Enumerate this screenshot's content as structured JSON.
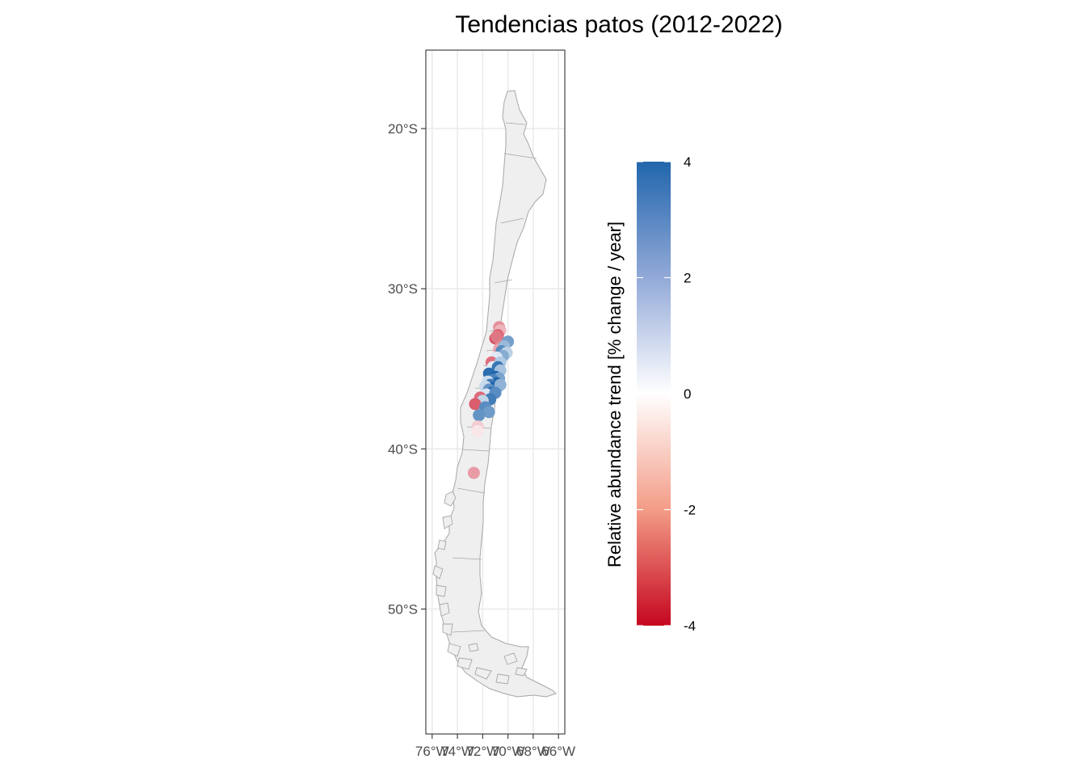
{
  "title": "Tendencias patos (2012-2022)",
  "x_axis": {
    "ticks": [
      {
        "value": -76,
        "label": "76°W"
      },
      {
        "value": -74,
        "label": "74°W"
      },
      {
        "value": -72,
        "label": "72°W"
      },
      {
        "value": -70,
        "label": "70°W"
      },
      {
        "value": -68,
        "label": "68°W"
      },
      {
        "value": -66,
        "label": "66°W"
      }
    ]
  },
  "y_axis": {
    "ticks": [
      {
        "value": -20,
        "label": "20°S"
      },
      {
        "value": -30,
        "label": "30°S"
      },
      {
        "value": -40,
        "label": "40°S"
      },
      {
        "value": -50,
        "label": "50°S"
      }
    ]
  },
  "legend": {
    "title": "Relative abundance trend [% change / year]",
    "ticks": [
      {
        "value": 4,
        "label": "4"
      },
      {
        "value": 2,
        "label": "2"
      },
      {
        "value": 0,
        "label": "0"
      },
      {
        "value": -2,
        "label": "-2"
      },
      {
        "value": -4,
        "label": "-4"
      }
    ],
    "colors": {
      "high": "#2166ac",
      "mid": "#ffffff",
      "low": "#c5061f"
    }
  },
  "chart_data": {
    "type": "scatter",
    "title": "Tendencias patos (2012-2022)",
    "xlabel": "",
    "ylabel": "",
    "xlim": [
      -76.5,
      -65.5
    ],
    "ylim": [
      -57.8,
      -15.1
    ],
    "grid": true,
    "legend_position": "right",
    "color_scale": {
      "min": -4,
      "max": 4,
      "label": "Relative abundance trend [% change / year]"
    },
    "points": [
      {
        "lon": -70.7,
        "lat": -32.4,
        "trend": -1.8
      },
      {
        "lon": -70.6,
        "lat": -32.6,
        "trend": -1.2
      },
      {
        "lon": -70.8,
        "lat": -32.9,
        "trend": -2.5
      },
      {
        "lon": -71.0,
        "lat": -33.1,
        "trend": -2.8
      },
      {
        "lon": -70.9,
        "lat": -33.0,
        "trend": -2.2
      },
      {
        "lon": -70.6,
        "lat": -33.6,
        "trend": -2.0
      },
      {
        "lon": -70.7,
        "lat": -33.8,
        "trend": -1.5
      },
      {
        "lon": -70.0,
        "lat": -33.3,
        "trend": 2.5
      },
      {
        "lon": -70.3,
        "lat": -33.6,
        "trend": 1.8
      },
      {
        "lon": -70.5,
        "lat": -33.9,
        "trend": 3.0
      },
      {
        "lon": -70.1,
        "lat": -34.0,
        "trend": 1.2
      },
      {
        "lon": -70.4,
        "lat": -34.2,
        "trend": 2.2
      },
      {
        "lon": -70.9,
        "lat": -34.3,
        "trend": 0.6
      },
      {
        "lon": -71.3,
        "lat": -34.6,
        "trend": -2.3
      },
      {
        "lon": -70.6,
        "lat": -34.6,
        "trend": 1.4
      },
      {
        "lon": -71.2,
        "lat": -34.9,
        "trend": 0.5
      },
      {
        "lon": -70.8,
        "lat": -34.9,
        "trend": 3.6
      },
      {
        "lon": -70.6,
        "lat": -35.1,
        "trend": 1.6
      },
      {
        "lon": -71.5,
        "lat": -35.3,
        "trend": 3.8
      },
      {
        "lon": -71.0,
        "lat": -35.5,
        "trend": 4.0
      },
      {
        "lon": -70.7,
        "lat": -35.6,
        "trend": 2.4
      },
      {
        "lon": -71.2,
        "lat": -35.7,
        "trend": 3.2
      },
      {
        "lon": -70.9,
        "lat": -35.9,
        "trend": 4.0
      },
      {
        "lon": -71.6,
        "lat": -35.8,
        "trend": 0.9
      },
      {
        "lon": -71.4,
        "lat": -36.0,
        "trend": 3.5
      },
      {
        "lon": -70.8,
        "lat": -36.1,
        "trend": 4.0
      },
      {
        "lon": -71.1,
        "lat": -36.2,
        "trend": 4.0
      },
      {
        "lon": -70.6,
        "lat": -36.0,
        "trend": 2.0
      },
      {
        "lon": -71.8,
        "lat": -36.1,
        "trend": 1.0
      },
      {
        "lon": -71.5,
        "lat": -36.3,
        "trend": 2.8
      },
      {
        "lon": -71.3,
        "lat": -36.5,
        "trend": 3.9
      },
      {
        "lon": -71.7,
        "lat": -36.6,
        "trend": 0.7
      },
      {
        "lon": -71.0,
        "lat": -36.5,
        "trend": 3.0
      },
      {
        "lon": -72.2,
        "lat": -36.8,
        "trend": -2.4
      },
      {
        "lon": -71.4,
        "lat": -36.9,
        "trend": 3.4
      },
      {
        "lon": -72.0,
        "lat": -37.0,
        "trend": 1.1
      },
      {
        "lon": -72.6,
        "lat": -37.2,
        "trend": -2.6
      },
      {
        "lon": -71.8,
        "lat": -37.4,
        "trend": 3.0
      },
      {
        "lon": -71.5,
        "lat": -37.7,
        "trend": 2.6
      },
      {
        "lon": -72.3,
        "lat": -37.9,
        "trend": 2.8
      },
      {
        "lon": -72.4,
        "lat": -38.6,
        "trend": -0.8
      },
      {
        "lon": -72.4,
        "lat": -38.9,
        "trend": -0.4
      },
      {
        "lon": -72.7,
        "lat": -41.5,
        "trend": -1.6
      }
    ]
  }
}
